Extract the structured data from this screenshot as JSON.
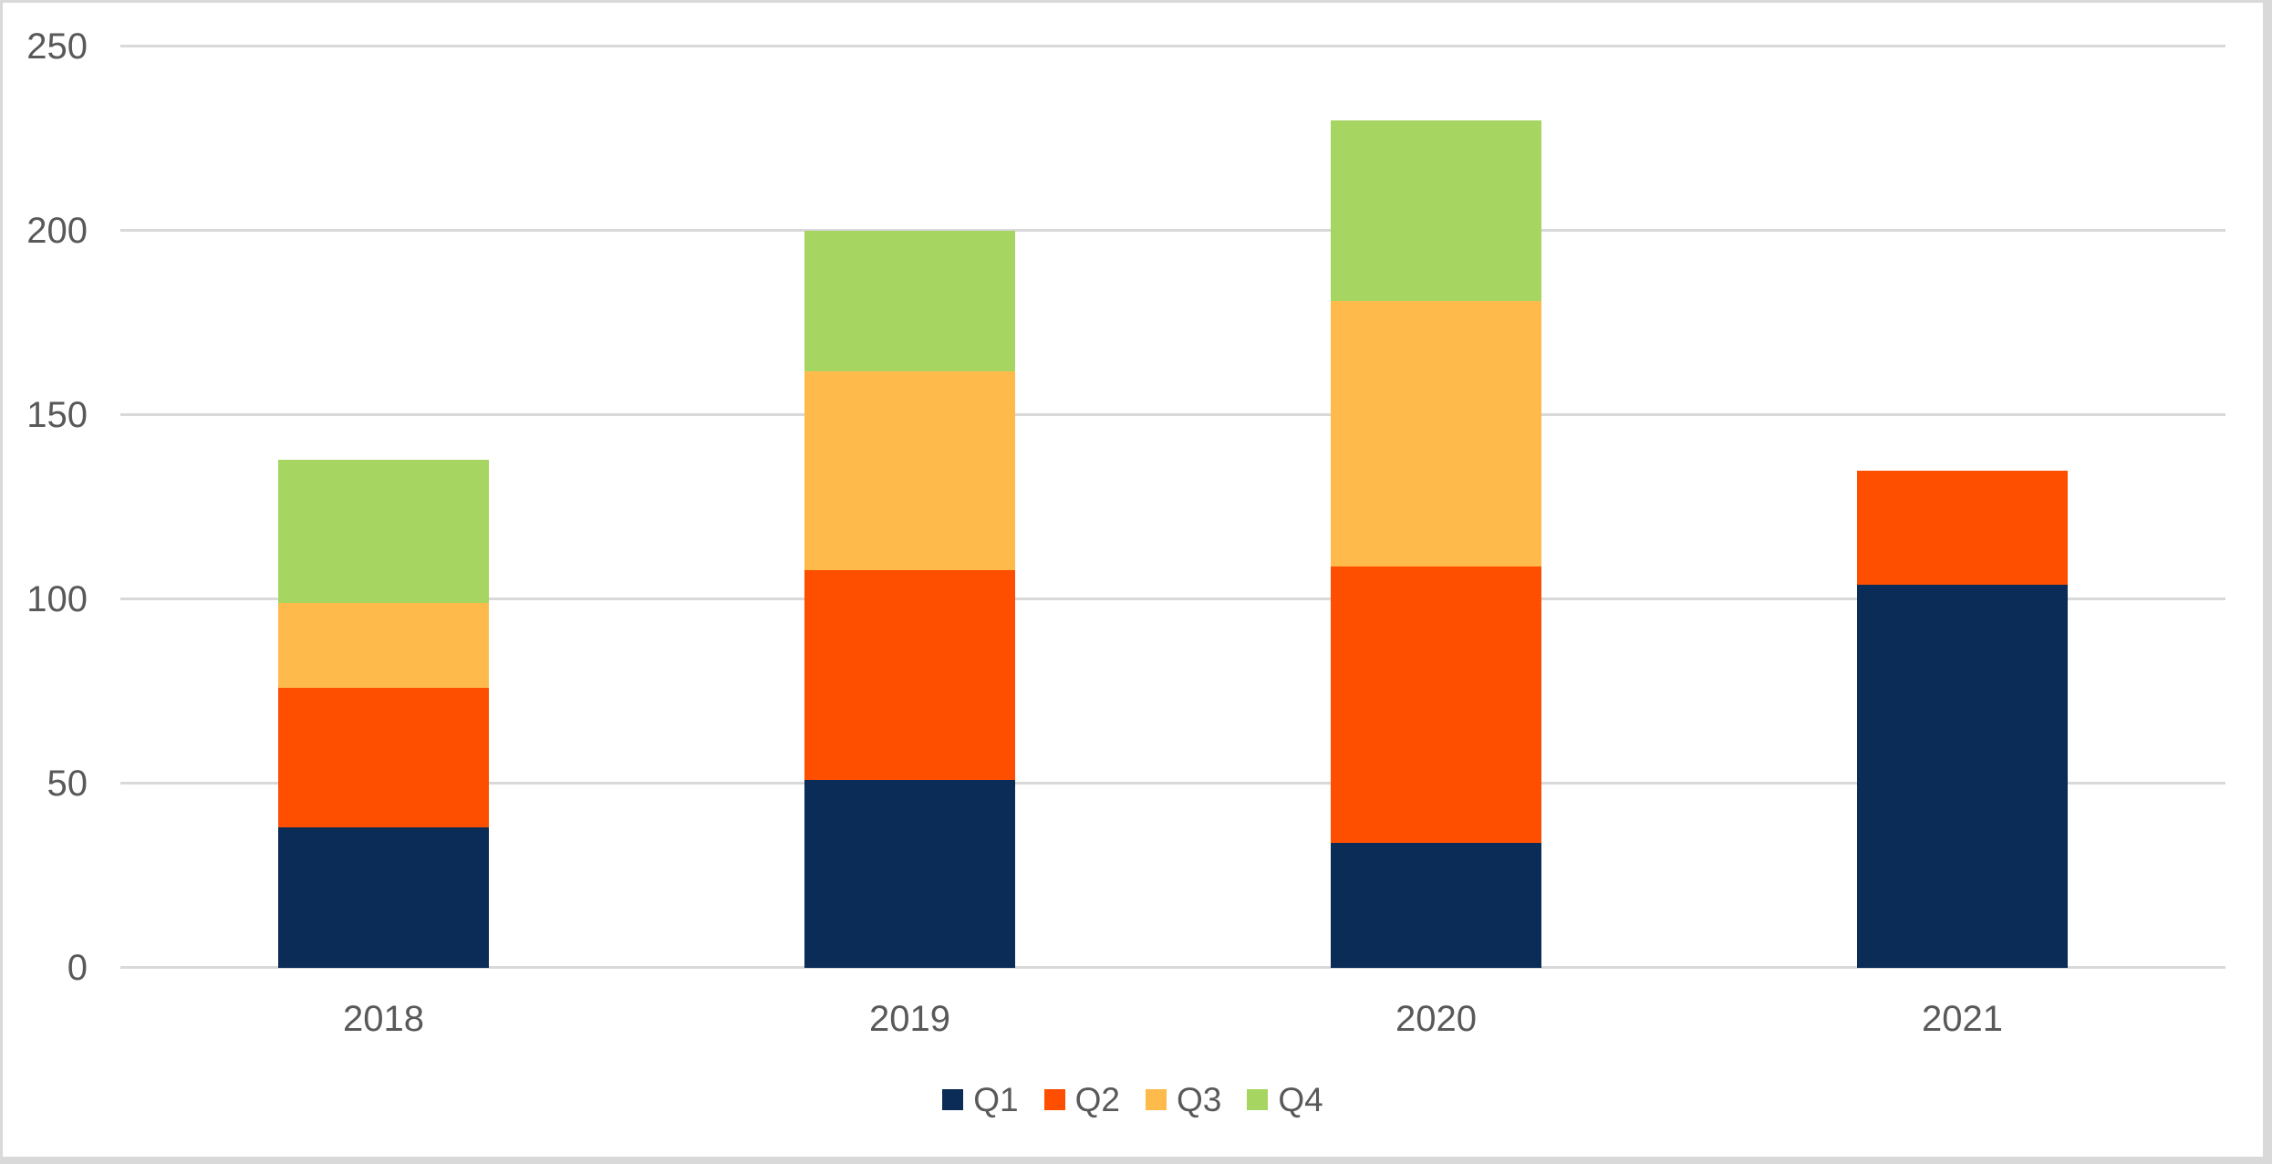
{
  "chart_data": {
    "type": "bar",
    "stacked": true,
    "title": "",
    "xlabel": "",
    "ylabel": "",
    "categories": [
      "2018",
      "2019",
      "2020",
      "2021"
    ],
    "series": [
      {
        "name": "Q1",
        "color": "#0a2c57",
        "values": [
          38,
          51,
          34,
          104
        ]
      },
      {
        "name": "Q2",
        "color": "#fe4f00",
        "values": [
          38,
          57,
          75,
          31
        ]
      },
      {
        "name": "Q3",
        "color": "#febb4c",
        "values": [
          23,
          54,
          72,
          0
        ]
      },
      {
        "name": "Q4",
        "color": "#a6d562",
        "values": [
          39,
          38,
          49,
          0
        ]
      }
    ],
    "totals": [
      138,
      200,
      230,
      135
    ],
    "y_axis": {
      "ticks": [
        0,
        50,
        100,
        150,
        200,
        250
      ],
      "min": 0,
      "max": 250
    },
    "x_axis": {
      "labels": [
        "2018",
        "2019",
        "2020",
        "2021"
      ]
    },
    "grid": "horizontal",
    "legend": {
      "position": "bottom",
      "items": [
        "Q1",
        "Q2",
        "Q3",
        "Q4"
      ]
    },
    "colors": {
      "text": "#595959",
      "gridline": "#d9d9d9",
      "border": "#d9d9d9",
      "background": "#ffffff"
    }
  }
}
